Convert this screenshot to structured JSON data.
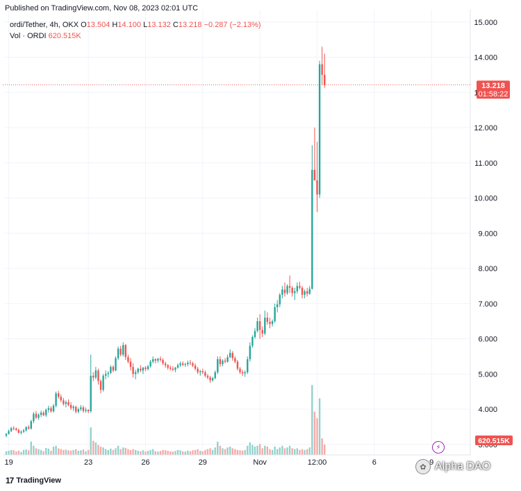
{
  "header": {
    "published_text": "Published on TradingView.com, Nov 08, 2023 02:01 UTC"
  },
  "legend": {
    "symbol": "ordi/Tether, 4h, OKX",
    "o_label": "O",
    "o_value": "13.504",
    "h_label": "H",
    "h_value": "14.100",
    "l_label": "L",
    "l_value": "13.132",
    "c_label": "C",
    "c_value": "13.218",
    "change": "−0.287 (−2.13%)",
    "vol_label": "Vol · ORDI",
    "vol_value": "620.515K"
  },
  "badges": {
    "price": "13.218",
    "countdown": "01:58:22",
    "volume": "620.515K"
  },
  "footer": {
    "brand": "TradingView",
    "logo_glyph": "17"
  },
  "watermark": {
    "text": "Alpha DAO"
  },
  "colors": {
    "up": "#26a69a",
    "down": "#ef5350",
    "vol_up": "#92d2cc",
    "vol_down": "#f7a9a7",
    "grid": "#f0f3fa",
    "axis_text": "#131722"
  },
  "chart_data": {
    "type": "candlestick",
    "ylim": [
      2.7,
      15.35
    ],
    "y_ticks": [
      "3.000",
      "4.000",
      "5.000",
      "6.000",
      "7.000",
      "8.000",
      "9.000",
      "10.000",
      "11.000",
      "12.000",
      "13.000",
      "14.000",
      "15.000"
    ],
    "x_ticks": [
      {
        "label": "19",
        "index": 1
      },
      {
        "label": "23",
        "index": 33
      },
      {
        "label": "26",
        "index": 56
      },
      {
        "label": "29",
        "index": 79
      },
      {
        "label": "Nov",
        "index": 102
      },
      {
        "label": "12:00",
        "index": 125
      },
      {
        "label": "6",
        "index": 148
      },
      {
        "label": "9",
        "index": 171
      }
    ],
    "last_price": 13.218,
    "ohlc": [
      [
        3.25,
        3.32,
        3.2,
        3.3
      ],
      [
        3.3,
        3.42,
        3.28,
        3.38
      ],
      [
        3.38,
        3.5,
        3.35,
        3.46
      ],
      [
        3.46,
        3.52,
        3.4,
        3.45
      ],
      [
        3.45,
        3.48,
        3.38,
        3.41
      ],
      [
        3.41,
        3.45,
        3.3,
        3.33
      ],
      [
        3.33,
        3.4,
        3.28,
        3.36
      ],
      [
        3.36,
        3.44,
        3.32,
        3.4
      ],
      [
        3.4,
        3.52,
        3.36,
        3.49
      ],
      [
        3.49,
        3.55,
        3.42,
        3.45
      ],
      [
        3.45,
        3.7,
        3.42,
        3.66
      ],
      [
        3.66,
        3.92,
        3.6,
        3.87
      ],
      [
        3.87,
        3.95,
        3.72,
        3.76
      ],
      [
        3.76,
        3.88,
        3.7,
        3.84
      ],
      [
        3.84,
        3.96,
        3.78,
        3.9
      ],
      [
        3.9,
        3.95,
        3.8,
        3.83
      ],
      [
        3.83,
        4.02,
        3.78,
        3.98
      ],
      [
        3.98,
        4.1,
        3.9,
        4.03
      ],
      [
        4.03,
        4.08,
        3.9,
        3.94
      ],
      [
        3.94,
        4.15,
        3.9,
        4.1
      ],
      [
        4.1,
        4.5,
        4.05,
        4.45
      ],
      [
        4.45,
        4.52,
        4.3,
        4.35
      ],
      [
        4.35,
        4.42,
        4.2,
        4.25
      ],
      [
        4.25,
        4.32,
        4.1,
        4.15
      ],
      [
        4.15,
        4.25,
        4.05,
        4.2
      ],
      [
        4.2,
        4.28,
        4.08,
        4.12
      ],
      [
        4.12,
        4.2,
        3.98,
        4.03
      ],
      [
        4.03,
        4.12,
        3.95,
        4.07
      ],
      [
        4.07,
        4.1,
        3.88,
        3.93
      ],
      [
        3.93,
        4.05,
        3.88,
        4.0
      ],
      [
        4.0,
        4.12,
        3.95,
        4.05
      ],
      [
        4.05,
        4.1,
        3.9,
        3.95
      ],
      [
        3.95,
        4.05,
        3.9,
        3.98
      ],
      [
        3.98,
        4.0,
        3.88,
        3.94
      ],
      [
        3.94,
        5.55,
        3.9,
        4.95
      ],
      [
        4.95,
        5.05,
        4.8,
        4.9
      ],
      [
        4.9,
        5.2,
        4.85,
        5.1
      ],
      [
        5.1,
        5.15,
        4.7,
        4.8
      ],
      [
        4.8,
        4.85,
        4.45,
        4.55
      ],
      [
        4.55,
        5.0,
        4.5,
        4.95
      ],
      [
        4.95,
        5.1,
        4.85,
        5.0
      ],
      [
        5.0,
        5.08,
        4.9,
        5.03
      ],
      [
        5.03,
        5.25,
        5.0,
        5.2
      ],
      [
        5.2,
        5.25,
        5.05,
        5.1
      ],
      [
        5.1,
        5.5,
        5.08,
        5.45
      ],
      [
        5.45,
        5.78,
        5.4,
        5.72
      ],
      [
        5.72,
        5.8,
        5.5,
        5.55
      ],
      [
        5.55,
        5.9,
        5.5,
        5.82
      ],
      [
        5.82,
        5.85,
        5.4,
        5.48
      ],
      [
        5.48,
        5.55,
        5.3,
        5.35
      ],
      [
        5.35,
        5.45,
        5.1,
        5.2
      ],
      [
        5.2,
        5.3,
        4.9,
        5.0
      ],
      [
        5.0,
        5.12,
        4.85,
        5.05
      ],
      [
        5.05,
        5.18,
        5.0,
        5.15
      ],
      [
        5.15,
        5.25,
        5.05,
        5.1
      ],
      [
        5.1,
        5.2,
        5.0,
        5.18
      ],
      [
        5.18,
        5.22,
        5.08,
        5.14
      ],
      [
        5.14,
        5.26,
        5.1,
        5.22
      ],
      [
        5.22,
        5.4,
        5.18,
        5.35
      ],
      [
        5.35,
        5.5,
        5.3,
        5.42
      ],
      [
        5.42,
        5.45,
        5.3,
        5.38
      ],
      [
        5.38,
        5.46,
        5.32,
        5.43
      ],
      [
        5.43,
        5.5,
        5.35,
        5.4
      ],
      [
        5.4,
        5.45,
        5.25,
        5.3
      ],
      [
        5.3,
        5.35,
        5.18,
        5.25
      ],
      [
        5.25,
        5.28,
        5.12,
        5.18
      ],
      [
        5.18,
        5.24,
        5.1,
        5.15
      ],
      [
        5.15,
        5.22,
        5.08,
        5.12
      ],
      [
        5.12,
        5.2,
        5.05,
        5.18
      ],
      [
        5.18,
        5.3,
        5.15,
        5.25
      ],
      [
        5.25,
        5.35,
        5.2,
        5.3
      ],
      [
        5.3,
        5.36,
        5.22,
        5.26
      ],
      [
        5.26,
        5.32,
        5.2,
        5.28
      ],
      [
        5.28,
        5.38,
        5.22,
        5.32
      ],
      [
        5.32,
        5.4,
        5.25,
        5.3
      ],
      [
        5.3,
        5.35,
        5.2,
        5.24
      ],
      [
        5.24,
        5.3,
        5.1,
        5.15
      ],
      [
        5.15,
        5.2,
        5.0,
        5.05
      ],
      [
        5.05,
        5.12,
        4.95,
        5.08
      ],
      [
        5.08,
        5.15,
        5.0,
        5.05
      ],
      [
        5.05,
        5.1,
        4.9,
        4.95
      ],
      [
        4.95,
        5.0,
        4.85,
        4.9
      ],
      [
        4.9,
        4.95,
        4.75,
        4.82
      ],
      [
        4.82,
        4.92,
        4.78,
        4.88
      ],
      [
        4.88,
        5.1,
        4.85,
        5.05
      ],
      [
        5.05,
        5.5,
        5.0,
        5.42
      ],
      [
        5.42,
        5.5,
        5.2,
        5.28
      ],
      [
        5.28,
        5.42,
        5.22,
        5.38
      ],
      [
        5.38,
        5.45,
        5.3,
        5.35
      ],
      [
        5.35,
        5.55,
        5.32,
        5.48
      ],
      [
        5.48,
        5.7,
        5.45,
        5.6
      ],
      [
        5.6,
        5.65,
        5.38,
        5.45
      ],
      [
        5.45,
        5.5,
        5.3,
        5.35
      ],
      [
        5.35,
        5.4,
        5.1,
        5.15
      ],
      [
        5.15,
        5.2,
        5.0,
        5.05
      ],
      [
        5.05,
        5.12,
        4.95,
        5.02
      ],
      [
        5.02,
        5.1,
        4.92,
        5.05
      ],
      [
        5.05,
        5.5,
        5.0,
        5.42
      ],
      [
        5.42,
        5.9,
        5.35,
        5.8
      ],
      [
        5.8,
        6.1,
        5.75,
        6.05
      ],
      [
        6.05,
        6.3,
        6.0,
        6.22
      ],
      [
        6.22,
        6.6,
        6.18,
        6.5
      ],
      [
        6.5,
        6.7,
        6.0,
        6.25
      ],
      [
        6.25,
        6.35,
        6.05,
        6.15
      ],
      [
        6.15,
        6.8,
        6.1,
        6.6
      ],
      [
        6.6,
        6.75,
        6.4,
        6.48
      ],
      [
        6.48,
        6.6,
        6.3,
        6.42
      ],
      [
        6.42,
        6.55,
        6.35,
        6.5
      ],
      [
        6.5,
        7.0,
        6.45,
        6.9
      ],
      [
        6.9,
        7.1,
        6.75,
        6.98
      ],
      [
        6.98,
        7.3,
        6.9,
        7.25
      ],
      [
        7.25,
        7.5,
        7.15,
        7.4
      ],
      [
        7.4,
        7.6,
        7.2,
        7.3
      ],
      [
        7.3,
        7.55,
        7.25,
        7.5
      ],
      [
        7.5,
        7.8,
        7.3,
        7.45
      ],
      [
        7.45,
        7.5,
        7.2,
        7.3
      ],
      [
        7.3,
        7.45,
        7.1,
        7.35
      ],
      [
        7.35,
        7.6,
        7.28,
        7.5
      ],
      [
        7.5,
        7.62,
        7.4,
        7.45
      ],
      [
        7.45,
        7.5,
        7.15,
        7.25
      ],
      [
        7.25,
        7.4,
        7.15,
        7.35
      ],
      [
        7.35,
        7.45,
        7.2,
        7.28
      ],
      [
        7.28,
        7.5,
        7.25,
        7.42
      ],
      [
        7.42,
        11.5,
        7.4,
        10.8
      ],
      [
        10.8,
        12.0,
        10.5,
        10.5
      ],
      [
        10.5,
        11.6,
        9.6,
        10.1
      ],
      [
        10.1,
        13.9,
        10.0,
        13.8
      ],
      [
        13.8,
        14.3,
        13.2,
        13.5
      ],
      [
        13.5,
        14.1,
        13.13,
        13.218
      ]
    ],
    "volume": [
      [
        0.22,
        1
      ],
      [
        0.25,
        1
      ],
      [
        0.3,
        1
      ],
      [
        0.28,
        0
      ],
      [
        0.2,
        0
      ],
      [
        0.26,
        0
      ],
      [
        0.18,
        1
      ],
      [
        0.3,
        1
      ],
      [
        0.33,
        1
      ],
      [
        0.28,
        0
      ],
      [
        0.8,
        1
      ],
      [
        0.55,
        1
      ],
      [
        0.4,
        0
      ],
      [
        0.35,
        1
      ],
      [
        0.3,
        1
      ],
      [
        0.22,
        0
      ],
      [
        0.42,
        1
      ],
      [
        0.38,
        1
      ],
      [
        0.25,
        0
      ],
      [
        0.5,
        1
      ],
      [
        0.55,
        1
      ],
      [
        0.4,
        0
      ],
      [
        0.35,
        0
      ],
      [
        0.3,
        0
      ],
      [
        0.32,
        1
      ],
      [
        0.28,
        0
      ],
      [
        0.26,
        0
      ],
      [
        0.3,
        1
      ],
      [
        0.35,
        0
      ],
      [
        0.25,
        1
      ],
      [
        0.28,
        1
      ],
      [
        0.32,
        0
      ],
      [
        0.22,
        1
      ],
      [
        0.3,
        0
      ],
      [
        1.65,
        1
      ],
      [
        0.85,
        0
      ],
      [
        0.75,
        1
      ],
      [
        0.6,
        0
      ],
      [
        0.5,
        0
      ],
      [
        0.45,
        1
      ],
      [
        0.35,
        1
      ],
      [
        0.3,
        1
      ],
      [
        0.38,
        1
      ],
      [
        0.3,
        0
      ],
      [
        0.4,
        1
      ],
      [
        0.55,
        1
      ],
      [
        0.35,
        0
      ],
      [
        0.45,
        1
      ],
      [
        0.42,
        0
      ],
      [
        0.35,
        0
      ],
      [
        0.3,
        0
      ],
      [
        0.35,
        0
      ],
      [
        0.3,
        1
      ],
      [
        0.25,
        1
      ],
      [
        0.22,
        0
      ],
      [
        0.28,
        1
      ],
      [
        0.2,
        0
      ],
      [
        0.25,
        1
      ],
      [
        0.3,
        1
      ],
      [
        0.35,
        1
      ],
      [
        0.22,
        0
      ],
      [
        0.2,
        1
      ],
      [
        0.24,
        0
      ],
      [
        0.3,
        0
      ],
      [
        0.28,
        0
      ],
      [
        0.25,
        0
      ],
      [
        0.22,
        0
      ],
      [
        0.2,
        0
      ],
      [
        0.24,
        1
      ],
      [
        0.3,
        1
      ],
      [
        0.28,
        1
      ],
      [
        0.22,
        0
      ],
      [
        0.2,
        1
      ],
      [
        0.26,
        1
      ],
      [
        0.22,
        0
      ],
      [
        0.28,
        0
      ],
      [
        0.3,
        0
      ],
      [
        0.35,
        0
      ],
      [
        0.25,
        1
      ],
      [
        0.22,
        0
      ],
      [
        0.3,
        0
      ],
      [
        0.35,
        0
      ],
      [
        0.4,
        0
      ],
      [
        0.3,
        1
      ],
      [
        0.45,
        1
      ],
      [
        0.8,
        1
      ],
      [
        0.55,
        0
      ],
      [
        0.4,
        1
      ],
      [
        0.35,
        0
      ],
      [
        0.45,
        1
      ],
      [
        0.5,
        1
      ],
      [
        0.4,
        0
      ],
      [
        0.35,
        0
      ],
      [
        0.3,
        0
      ],
      [
        0.28,
        0
      ],
      [
        0.26,
        0
      ],
      [
        0.3,
        1
      ],
      [
        0.55,
        1
      ],
      [
        0.75,
        1
      ],
      [
        0.6,
        1
      ],
      [
        0.5,
        1
      ],
      [
        0.55,
        1
      ],
      [
        0.65,
        0
      ],
      [
        0.4,
        0
      ],
      [
        0.55,
        1
      ],
      [
        0.5,
        0
      ],
      [
        0.35,
        0
      ],
      [
        0.3,
        1
      ],
      [
        0.5,
        1
      ],
      [
        0.35,
        1
      ],
      [
        0.45,
        1
      ],
      [
        0.55,
        1
      ],
      [
        0.4,
        0
      ],
      [
        0.45,
        1
      ],
      [
        0.55,
        1
      ],
      [
        0.4,
        0
      ],
      [
        0.35,
        1
      ],
      [
        0.4,
        1
      ],
      [
        0.3,
        0
      ],
      [
        0.35,
        0
      ],
      [
        0.3,
        1
      ],
      [
        0.35,
        0
      ],
      [
        0.45,
        1
      ],
      [
        4.2,
        1
      ],
      [
        2.6,
        0
      ],
      [
        2.2,
        0
      ],
      [
        3.4,
        1
      ],
      [
        1.0,
        0
      ],
      [
        0.62,
        0
      ]
    ]
  }
}
